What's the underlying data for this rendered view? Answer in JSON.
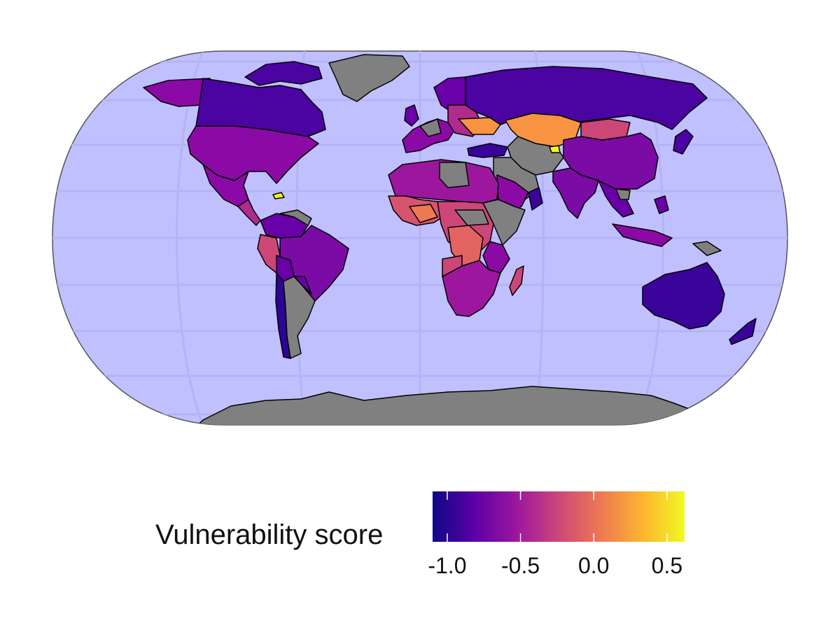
{
  "map": {
    "projection": "robinson",
    "ocean_color": "#c0c0ff",
    "no_data_color": "#808080",
    "border_color": "#000000"
  },
  "legend": {
    "title": "Vulnerability score",
    "colormap": "plasma",
    "range": [
      -1.1,
      0.62
    ],
    "ticks": [
      {
        "value": -1.0,
        "label": "-1.0"
      },
      {
        "value": -0.5,
        "label": "-0.5"
      },
      {
        "value": 0.0,
        "label": "0.0"
      },
      {
        "value": 0.5,
        "label": "0.5"
      }
    ],
    "stops": [
      "#0d0887",
      "#5c01a6",
      "#9c179e",
      "#cc4778",
      "#ed7953",
      "#fdb42f",
      "#f0f921"
    ]
  }
}
